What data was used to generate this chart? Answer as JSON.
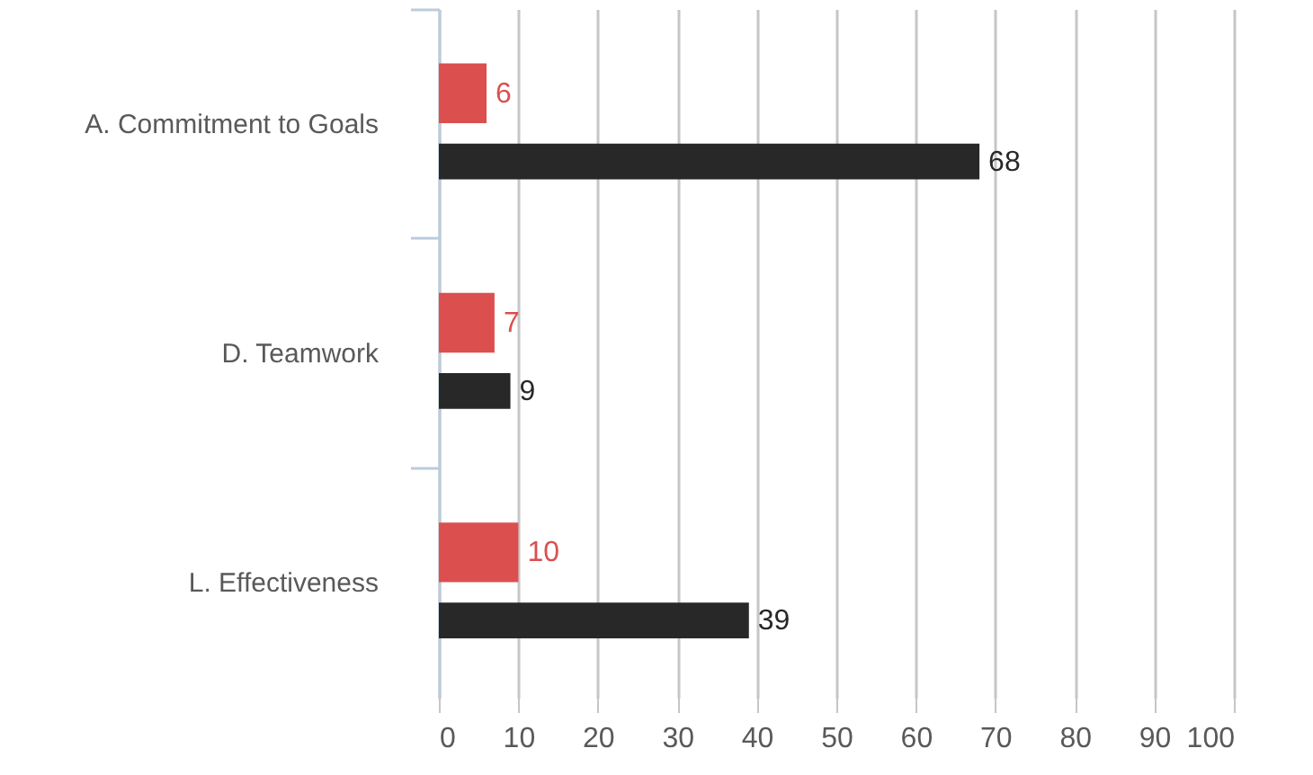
{
  "chart_data": {
    "type": "bar",
    "orientation": "horizontal",
    "categories": [
      "A. Commitment to Goals",
      "D. Teamwork",
      "L. Effectiveness"
    ],
    "series": [
      {
        "color": "#dc4f4f",
        "values": [
          6,
          7,
          10
        ]
      },
      {
        "color": "#282828",
        "values": [
          68,
          9,
          39
        ]
      }
    ],
    "xlim": [
      0,
      100
    ],
    "xticks": [
      0,
      10,
      20,
      30,
      40,
      50,
      60,
      70,
      80,
      90,
      100
    ],
    "grid": "x",
    "data_labels": true
  }
}
